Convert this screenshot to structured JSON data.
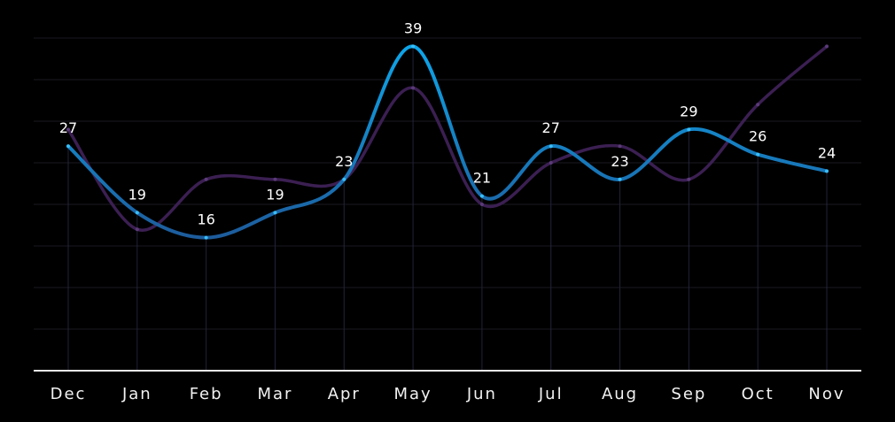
{
  "chart_data": {
    "type": "line",
    "categories": [
      "Dec",
      "Jan",
      "Feb",
      "Mar",
      "Apr",
      "May",
      "Jun",
      "Jul",
      "Aug",
      "Sep",
      "Oct",
      "Nov"
    ],
    "series": [
      {
        "values": [
          27,
          19,
          16,
          19,
          23,
          39,
          21,
          27,
          23,
          29,
          26,
          24
        ],
        "color": "#0ea5e9",
        "labels_shown": true
      },
      {
        "values": [
          29,
          17,
          23,
          23,
          23,
          34,
          20,
          25,
          27,
          23,
          32,
          39
        ],
        "color": "#3b1f52",
        "labels_shown": false
      }
    ],
    "ylim": [
      0,
      40
    ],
    "grid": true,
    "legend": "none",
    "title": "",
    "xlabel": "",
    "ylabel": ""
  }
}
